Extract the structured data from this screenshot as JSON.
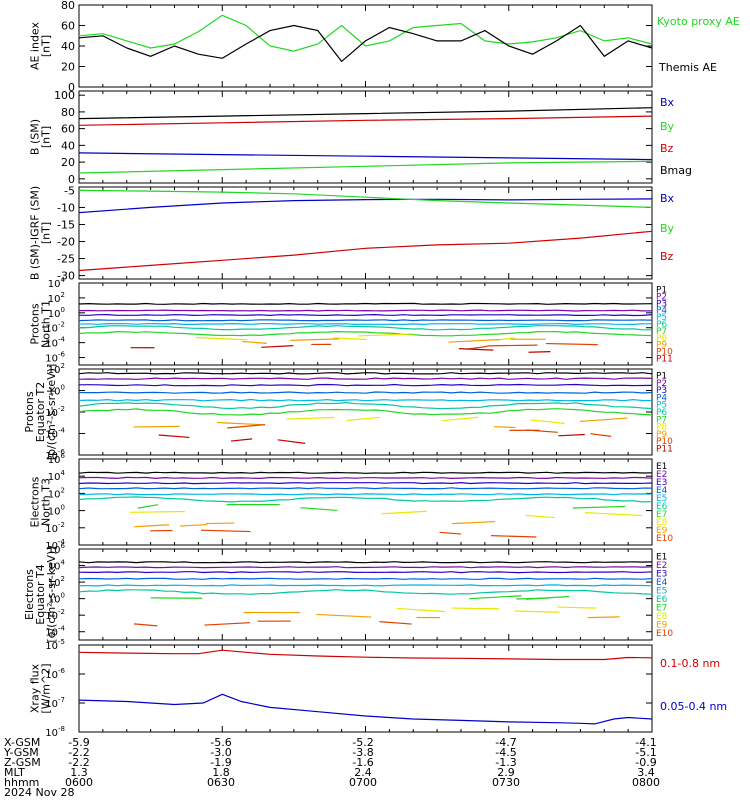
{
  "colors": {
    "black": "#000000",
    "blue": "#0000c8",
    "green": "#22d622",
    "red": "#d00000",
    "p1": "#000000",
    "p2": "#7a0aa0",
    "p3": "#2a00c8",
    "p4": "#0060e0",
    "p5": "#00b4e8",
    "p6": "#00c8a0",
    "p7": "#22d622",
    "p8": "#e8e800",
    "p9": "#f0a000",
    "p10": "#e04000",
    "p11": "#c00000"
  },
  "time_axis": {
    "ticks": [
      "0600",
      "0630",
      "0700",
      "0730",
      "0800"
    ],
    "range_minutes": [
      0,
      120
    ]
  },
  "chart_data": [
    {
      "type": "line",
      "id": "ae",
      "ylabel_lines": [
        "AE index",
        "[nT]"
      ],
      "ylim": [
        0,
        80
      ],
      "yticks": [
        "0",
        "20",
        "40",
        "60",
        "80"
      ],
      "series": [
        {
          "name": "Kyoto proxy AE",
          "color": "#22d622",
          "x": [
            0,
            5,
            10,
            15,
            20,
            25,
            30,
            35,
            40,
            45,
            50,
            55,
            60,
            65,
            70,
            75,
            80,
            85,
            90,
            95,
            100,
            105,
            110,
            115,
            120
          ],
          "y": [
            50,
            52,
            45,
            38,
            42,
            54,
            70,
            60,
            40,
            35,
            42,
            60,
            40,
            45,
            58,
            60,
            62,
            45,
            42,
            44,
            48,
            55,
            45,
            48,
            42
          ]
        },
        {
          "name": "Themis AE",
          "color": "#000000",
          "x": [
            0,
            5,
            10,
            15,
            20,
            25,
            30,
            35,
            40,
            45,
            50,
            55,
            60,
            65,
            70,
            75,
            80,
            85,
            90,
            95,
            100,
            105,
            110,
            115,
            120
          ],
          "y": [
            48,
            50,
            38,
            30,
            40,
            32,
            28,
            42,
            55,
            60,
            55,
            25,
            45,
            58,
            52,
            45,
            45,
            55,
            40,
            32,
            45,
            60,
            30,
            45,
            38
          ]
        }
      ]
    },
    {
      "type": "line",
      "id": "b_sm",
      "ylabel_lines": [
        "B (SM)",
        "[nT]"
      ],
      "ylim": [
        -5,
        105
      ],
      "yticks": [
        "0",
        "20",
        "40",
        "60",
        "80",
        "100"
      ],
      "series": [
        {
          "name": "Bx",
          "color": "#0000c8",
          "x": [
            0,
            30,
            60,
            90,
            120
          ],
          "y": [
            31,
            29,
            27,
            25,
            23
          ]
        },
        {
          "name": "By",
          "color": "#22d622",
          "x": [
            0,
            30,
            60,
            90,
            120
          ],
          "y": [
            7,
            11,
            15,
            19,
            21
          ]
        },
        {
          "name": "Bz",
          "color": "#d00000",
          "x": [
            0,
            30,
            60,
            90,
            120
          ],
          "y": [
            64,
            67,
            70,
            72,
            75
          ]
        },
        {
          "name": "Bmag",
          "color": "#000000",
          "x": [
            0,
            30,
            60,
            90,
            120
          ],
          "y": [
            72,
            75,
            78,
            81,
            85
          ]
        }
      ]
    },
    {
      "type": "line",
      "id": "b_igrf",
      "ylabel_lines": [
        "B (SM)-IGRF (SM)",
        "[nT]"
      ],
      "ylim": [
        -31,
        -4
      ],
      "yticks": [
        "-30",
        "-25",
        "-20",
        "-15",
        "-10",
        "-5"
      ],
      "series": [
        {
          "name": "Bx",
          "color": "#0000c8",
          "x": [
            0,
            15,
            30,
            45,
            60,
            75,
            90,
            105,
            120
          ],
          "y": [
            -11.5,
            -10,
            -8.7,
            -8,
            -7.7,
            -7.6,
            -7.8,
            -7.6,
            -7.5
          ]
        },
        {
          "name": "By",
          "color": "#22d622",
          "x": [
            0,
            15,
            30,
            45,
            60,
            75,
            90,
            105,
            120
          ],
          "y": [
            -5,
            -5.2,
            -5.5,
            -6,
            -7,
            -8,
            -8.7,
            -9.3,
            -10
          ]
        },
        {
          "name": "Bz",
          "color": "#d00000",
          "x": [
            0,
            15,
            30,
            45,
            60,
            75,
            90,
            105,
            120
          ],
          "y": [
            -28.5,
            -27,
            -25.5,
            -24,
            -22,
            -21,
            -20.5,
            -19,
            -17
          ]
        }
      ]
    },
    {
      "type": "line",
      "id": "protons_t1",
      "log": true,
      "ylabel_lines": [
        "Protons",
        "North T1"
      ],
      "ylim_exp": [
        -7,
        4
      ],
      "yticks_exp": [
        -6,
        -4,
        -2,
        0,
        2,
        4
      ],
      "legend": [
        "P1",
        "P2",
        "P3",
        "P4",
        "P5",
        "P6",
        "P7",
        "P8",
        "P9",
        "P10",
        "P11"
      ],
      "levels": [
        1.2,
        0.3,
        -0.3,
        -1.0,
        -1.5,
        -2.0,
        -2.8,
        -3.3,
        -3.8,
        -4.5,
        -5.0
      ]
    },
    {
      "type": "line",
      "id": "protons_t2",
      "log": true,
      "ylabel_lines": [
        "Protons",
        "Equator T2",
        "[p/(cm²-s-sr-keV)]"
      ],
      "ylim_exp": [
        -6,
        2
      ],
      "yticks_exp": [
        -6,
        -4,
        -2,
        0,
        2
      ],
      "legend": [
        "P1",
        "P2",
        "P3",
        "P4",
        "P5",
        "P6",
        "P7",
        "P8",
        "P9",
        "P10",
        "P11"
      ],
      "levels": [
        1.6,
        1.1,
        0.5,
        -0.2,
        -0.9,
        -1.4,
        -2.0,
        -2.7,
        -3.2,
        -3.7,
        -4.4
      ]
    },
    {
      "type": "line",
      "id": "electrons_t3",
      "log": true,
      "ylabel_lines": [
        "Electrons",
        "North T3"
      ],
      "ylim_exp": [
        -4,
        6
      ],
      "yticks_exp": [
        -4,
        -2,
        0,
        2,
        4,
        6
      ],
      "legend": [
        "E1",
        "E2",
        "E3",
        "E4",
        "E5",
        "E6",
        "E7",
        "E8",
        "E9",
        "E10"
      ],
      "levels": [
        4.4,
        3.8,
        3.2,
        2.6,
        1.9,
        1.3,
        0.6,
        -0.3,
        -1.8,
        -2.6
      ]
    },
    {
      "type": "line",
      "id": "electrons_t4",
      "log": true,
      "ylabel_lines": [
        "Electrons",
        "Equator T4",
        "[e/(cm²-s-sr-keV)]"
      ],
      "ylim_exp": [
        -5,
        6
      ],
      "yticks_exp": [
        -4,
        -2,
        0,
        2,
        4,
        6
      ],
      "legend": [
        "E1",
        "E2",
        "E3",
        "E4",
        "E5",
        "E6",
        "E7",
        "E8",
        "E9",
        "E10"
      ],
      "levels": [
        4.4,
        3.8,
        3.2,
        2.4,
        1.6,
        0.8,
        0.0,
        -1.1,
        -2.0,
        -3.0
      ]
    },
    {
      "type": "line",
      "id": "xray",
      "log": true,
      "ylabel_lines": [
        "Xray flux",
        "[W/m^2]"
      ],
      "ylim_exp": [
        -8,
        -5
      ],
      "yticks_exp": [
        -8,
        -7,
        -6,
        -5
      ],
      "series": [
        {
          "name": "0.1-0.8 nm",
          "color": "#d00000",
          "x": [
            0,
            10,
            20,
            25,
            30,
            35,
            40,
            50,
            60,
            70,
            80,
            90,
            100,
            110,
            115,
            120
          ],
          "y": [
            -5.25,
            -5.28,
            -5.3,
            -5.3,
            -5.18,
            -5.25,
            -5.32,
            -5.38,
            -5.42,
            -5.45,
            -5.46,
            -5.48,
            -5.5,
            -5.5,
            -5.43,
            -5.44
          ]
        },
        {
          "name": "0.05-0.4 nm",
          "color": "#0000c8",
          "x": [
            0,
            10,
            20,
            26,
            30,
            34,
            40,
            50,
            60,
            70,
            80,
            90,
            100,
            105,
            108,
            112,
            115,
            120
          ],
          "y": [
            -6.9,
            -6.95,
            -7.05,
            -7.0,
            -6.7,
            -6.95,
            -7.15,
            -7.3,
            -7.45,
            -7.55,
            -7.6,
            -7.65,
            -7.68,
            -7.7,
            -7.72,
            -7.55,
            -7.5,
            -7.55
          ]
        }
      ]
    }
  ],
  "orbit_table": {
    "rows": [
      {
        "label": "X-GSM",
        "values": [
          "-5.9",
          "-5.6",
          "-5.2",
          "-4.7",
          "-4.1"
        ]
      },
      {
        "label": "Y-GSM",
        "values": [
          "-2.2",
          "-3.0",
          "-3.8",
          "-4.5",
          "-5.1"
        ]
      },
      {
        "label": "Z-GSM",
        "values": [
          "-2.2",
          "-1.9",
          "-1.6",
          "-1.3",
          "-0.9"
        ]
      },
      {
        "label": "MLT",
        "values": [
          "1.3",
          "1.8",
          "2.4",
          "2.9",
          "3.4"
        ]
      },
      {
        "label": "hhmm",
        "values": [
          "0600",
          "0630",
          "0700",
          "0730",
          "0800"
        ]
      }
    ],
    "date": "2024 Nov 28"
  }
}
